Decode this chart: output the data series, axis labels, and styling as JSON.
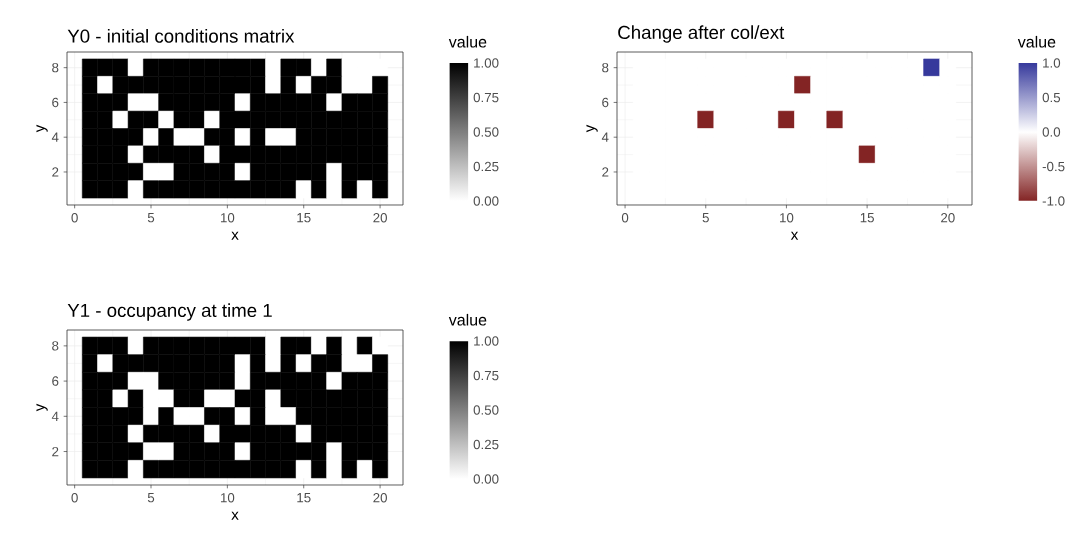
{
  "chart_data": [
    {
      "type": "heatmap",
      "title": "Y0 - initial conditions matrix",
      "xlabel": "x",
      "ylabel": "y",
      "clabel": "value",
      "x": [
        1,
        2,
        3,
        4,
        5,
        6,
        7,
        8,
        9,
        10,
        11,
        12,
        13,
        14,
        15,
        16,
        17,
        18,
        19,
        20
      ],
      "y": [
        8,
        7,
        6,
        5,
        4,
        3,
        2,
        1
      ],
      "cells": [
        [
          1,
          1,
          1,
          0,
          1,
          1,
          1,
          1,
          1,
          1,
          1,
          1,
          0,
          1,
          1,
          0,
          1,
          0,
          0,
          0
        ],
        [
          1,
          0,
          1,
          1,
          1,
          1,
          1,
          1,
          1,
          1,
          1,
          1,
          0,
          1,
          0,
          1,
          1,
          0,
          0,
          1
        ],
        [
          1,
          1,
          1,
          0,
          0,
          1,
          1,
          1,
          1,
          1,
          0,
          1,
          1,
          1,
          1,
          1,
          0,
          1,
          1,
          1
        ],
        [
          1,
          1,
          0,
          1,
          1,
          0,
          1,
          1,
          0,
          1,
          1,
          1,
          1,
          1,
          1,
          1,
          1,
          1,
          1,
          1
        ],
        [
          1,
          1,
          1,
          1,
          0,
          1,
          0,
          0,
          1,
          1,
          0,
          1,
          0,
          0,
          1,
          1,
          1,
          1,
          1,
          1
        ],
        [
          1,
          1,
          1,
          0,
          1,
          1,
          1,
          1,
          0,
          1,
          1,
          1,
          1,
          1,
          1,
          1,
          1,
          1,
          1,
          1
        ],
        [
          1,
          1,
          1,
          1,
          0,
          0,
          1,
          1,
          1,
          1,
          0,
          1,
          1,
          1,
          1,
          1,
          0,
          1,
          1,
          1
        ],
        [
          1,
          1,
          1,
          0,
          1,
          1,
          1,
          1,
          1,
          1,
          1,
          1,
          1,
          1,
          0,
          1,
          0,
          1,
          0,
          1
        ]
      ],
      "colors": [
        "#ffffff",
        "#000000"
      ],
      "clim": [
        0,
        1
      ],
      "cticks": [
        {
          "value": 0,
          "label": "0.00"
        },
        {
          "value": 0.25,
          "label": "0.25"
        },
        {
          "value": 0.5,
          "label": "0.50"
        },
        {
          "value": 0.75,
          "label": "0.75"
        },
        {
          "value": 1,
          "label": "1.00"
        }
      ],
      "xlim": [
        -0.5,
        21.5
      ],
      "xticks": [
        0,
        5,
        10,
        15,
        20
      ],
      "ylim": [
        0.1,
        8.9
      ],
      "yticks": [
        2,
        4,
        6,
        8
      ],
      "grid": true
    },
    {
      "type": "heatmap",
      "title": "Change after col/ext",
      "xlabel": "x",
      "ylabel": "y",
      "clabel": "value",
      "x": [
        1,
        2,
        3,
        4,
        5,
        6,
        7,
        8,
        9,
        10,
        11,
        12,
        13,
        14,
        15,
        16,
        17,
        18,
        19,
        20
      ],
      "y": [
        8,
        7,
        6,
        5,
        4,
        3,
        2,
        1
      ],
      "cells": [
        [
          0,
          0,
          0,
          0,
          0,
          0,
          0,
          0,
          0,
          0,
          0,
          0,
          0,
          0,
          0,
          0,
          0,
          0,
          1,
          0
        ],
        [
          0,
          0,
          0,
          0,
          0,
          0,
          0,
          0,
          0,
          0,
          -1,
          0,
          0,
          0,
          0,
          0,
          0,
          0,
          0,
          0
        ],
        [
          0,
          0,
          0,
          0,
          0,
          0,
          0,
          0,
          0,
          0,
          0,
          0,
          0,
          0,
          0,
          0,
          0,
          0,
          0,
          0
        ],
        [
          0,
          0,
          0,
          0,
          -1,
          0,
          0,
          0,
          0,
          -1,
          0,
          0,
          -1,
          0,
          0,
          0,
          0,
          0,
          0,
          0
        ],
        [
          0,
          0,
          0,
          0,
          0,
          0,
          0,
          0,
          0,
          0,
          0,
          0,
          0,
          0,
          0,
          0,
          0,
          0,
          0,
          0
        ],
        [
          0,
          0,
          0,
          0,
          0,
          0,
          0,
          0,
          0,
          0,
          0,
          0,
          0,
          0,
          -1,
          0,
          0,
          0,
          0,
          0
        ],
        [
          0,
          0,
          0,
          0,
          0,
          0,
          0,
          0,
          0,
          0,
          0,
          0,
          0,
          0,
          0,
          0,
          0,
          0,
          0,
          0
        ],
        [
          0,
          0,
          0,
          0,
          0,
          0,
          0,
          0,
          0,
          0,
          0,
          0,
          0,
          0,
          0,
          0,
          0,
          0,
          0,
          0
        ]
      ],
      "colors": [
        "#832424",
        "#ffffff",
        "#36399c"
      ],
      "clim": [
        -1,
        1
      ],
      "cticks": [
        {
          "value": -1,
          "label": "-1.0"
        },
        {
          "value": -0.5,
          "label": "-0.5"
        },
        {
          "value": 0,
          "label": "0.0"
        },
        {
          "value": 0.5,
          "label": "0.5"
        },
        {
          "value": 1,
          "label": "1.0"
        }
      ],
      "xlim": [
        -0.5,
        21.5
      ],
      "xticks": [
        0,
        5,
        10,
        15,
        20
      ],
      "ylim": [
        0.1,
        8.9
      ],
      "yticks": [
        2,
        4,
        6,
        8
      ],
      "grid": true
    },
    {
      "type": "heatmap",
      "title": "Y1 - occupancy at time 1",
      "xlabel": "x",
      "ylabel": "y",
      "clabel": "value",
      "x": [
        1,
        2,
        3,
        4,
        5,
        6,
        7,
        8,
        9,
        10,
        11,
        12,
        13,
        14,
        15,
        16,
        17,
        18,
        19,
        20
      ],
      "y": [
        8,
        7,
        6,
        5,
        4,
        3,
        2,
        1
      ],
      "cells": [
        [
          1,
          1,
          1,
          0,
          1,
          1,
          1,
          1,
          1,
          1,
          1,
          1,
          0,
          1,
          1,
          0,
          1,
          0,
          1,
          0
        ],
        [
          1,
          0,
          1,
          1,
          1,
          1,
          1,
          1,
          1,
          1,
          0,
          1,
          0,
          1,
          0,
          1,
          1,
          0,
          0,
          1
        ],
        [
          1,
          1,
          1,
          0,
          0,
          1,
          1,
          1,
          1,
          1,
          0,
          1,
          1,
          1,
          1,
          1,
          0,
          1,
          1,
          1
        ],
        [
          1,
          1,
          0,
          1,
          0,
          0,
          1,
          1,
          0,
          0,
          1,
          1,
          0,
          1,
          1,
          1,
          1,
          1,
          1,
          1
        ],
        [
          1,
          1,
          1,
          1,
          0,
          1,
          0,
          0,
          1,
          1,
          0,
          1,
          0,
          0,
          1,
          1,
          1,
          1,
          1,
          1
        ],
        [
          1,
          1,
          1,
          0,
          1,
          1,
          1,
          1,
          0,
          1,
          1,
          1,
          1,
          1,
          0,
          1,
          1,
          1,
          1,
          1
        ],
        [
          1,
          1,
          1,
          1,
          0,
          0,
          1,
          1,
          1,
          1,
          0,
          1,
          1,
          1,
          1,
          1,
          0,
          1,
          1,
          1
        ],
        [
          1,
          1,
          1,
          0,
          1,
          1,
          1,
          1,
          1,
          1,
          1,
          1,
          1,
          1,
          0,
          1,
          0,
          1,
          0,
          1
        ]
      ],
      "colors": [
        "#ffffff",
        "#000000"
      ],
      "clim": [
        0,
        1
      ],
      "cticks": [
        {
          "value": 0,
          "label": "0.00"
        },
        {
          "value": 0.25,
          "label": "0.25"
        },
        {
          "value": 0.5,
          "label": "0.50"
        },
        {
          "value": 0.75,
          "label": "0.75"
        },
        {
          "value": 1,
          "label": "1.00"
        }
      ],
      "xlim": [
        -0.5,
        21.5
      ],
      "xticks": [
        0,
        5,
        10,
        15,
        20
      ],
      "ylim": [
        0.1,
        8.9
      ],
      "yticks": [
        2,
        4,
        6,
        8
      ],
      "grid": true
    }
  ]
}
